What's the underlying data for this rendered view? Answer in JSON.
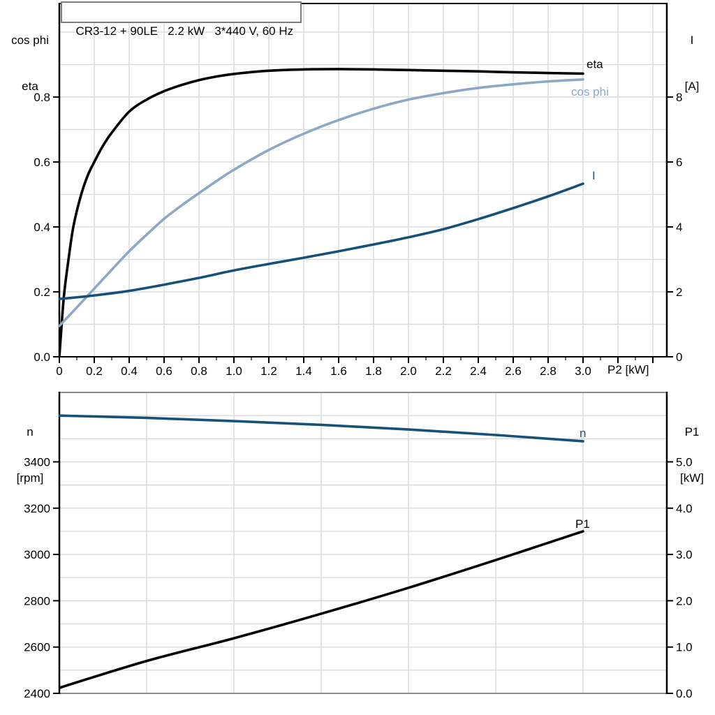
{
  "title": "CR3-12 + 90LE   2.2 kW   3*440 V, 60 Hz",
  "colors": {
    "black_curve": "#000000",
    "light_blue_curve": "#8CA8C6",
    "dark_blue_curve": "#175079",
    "grid": "#D9D9D9",
    "frame": "#000000",
    "frame_gray": "#8C8C8C",
    "title_border": "#7F7F7F"
  },
  "chart_data": [
    {
      "type": "line",
      "title": "CR3-12 + 90LE   2.2 kW   3*440 V, 60 Hz",
      "x_axis": {
        "label": "P2 [kW]",
        "range": [
          0,
          3.48
        ],
        "tick_values": [
          0,
          0.2,
          0.4,
          0.6,
          0.8,
          1.0,
          1.2,
          1.4,
          1.6,
          1.8,
          2.0,
          2.2,
          2.4,
          2.6,
          2.8,
          3.0,
          3.2,
          3.4
        ],
        "tick_labels": [
          "0",
          "0.2",
          "0.4",
          "0.6",
          "0.8",
          "1.0",
          "1.2",
          "1.4",
          "1.6",
          "1.8",
          "2.0",
          "2.2",
          "2.4",
          "2.6",
          "2.8",
          "3.0",
          "",
          ""
        ],
        "minor_ticks": [
          0.1,
          0.3,
          0.5,
          0.7,
          0.9,
          1.1,
          1.3,
          1.5,
          1.7,
          1.9,
          2.1,
          2.3,
          2.5,
          2.7,
          2.9,
          3.1,
          3.3
        ],
        "grid": [
          0.2,
          0.4,
          0.6,
          0.8,
          1.0,
          1.2,
          1.4,
          1.6,
          1.8,
          2.0,
          2.2,
          2.4,
          2.6,
          2.8,
          3.0,
          3.2,
          3.4
        ]
      },
      "y_left": {
        "title_lines": [
          "cos phi",
          "eta"
        ],
        "range": [
          0,
          1.088
        ],
        "tick_values": [
          0,
          0.2,
          0.4,
          0.6,
          0.8
        ],
        "tick_labels": [
          "0.0",
          "0.2",
          "0.4",
          "0.6",
          "0.8"
        ],
        "grid": [
          0.1,
          0.2,
          0.3,
          0.4,
          0.5,
          0.6,
          0.7,
          0.8,
          0.9,
          1.0
        ]
      },
      "y_right": {
        "title_lines": [
          "I",
          "[A]"
        ],
        "range": [
          0,
          10.88
        ],
        "tick_values": [
          0,
          2,
          4,
          6,
          8
        ],
        "tick_labels": [
          "0",
          "2",
          "4",
          "6",
          "8"
        ]
      },
      "series": [
        {
          "name": "eta",
          "label": "eta",
          "axis": "left",
          "color": "#000000",
          "label_anchor": [
            3.0,
            0.872
          ],
          "label_offset": [
            5,
            -8
          ],
          "points": [
            [
              0,
              0
            ],
            [
              0.025,
              0.18
            ],
            [
              0.05,
              0.29
            ],
            [
              0.08,
              0.4
            ],
            [
              0.12,
              0.49
            ],
            [
              0.16,
              0.555
            ],
            [
              0.2,
              0.6
            ],
            [
              0.25,
              0.65
            ],
            [
              0.3,
              0.69
            ],
            [
              0.4,
              0.755
            ],
            [
              0.5,
              0.792
            ],
            [
              0.6,
              0.818
            ],
            [
              0.7,
              0.837
            ],
            [
              0.8,
              0.852
            ],
            [
              0.9,
              0.863
            ],
            [
              1.0,
              0.871
            ],
            [
              1.2,
              0.881
            ],
            [
              1.4,
              0.885
            ],
            [
              1.6,
              0.886
            ],
            [
              1.8,
              0.885
            ],
            [
              2.0,
              0.883
            ],
            [
              2.2,
              0.881
            ],
            [
              2.4,
              0.879
            ],
            [
              2.6,
              0.876
            ],
            [
              2.8,
              0.874
            ],
            [
              3.0,
              0.872
            ]
          ]
        },
        {
          "name": "cos phi",
          "label": "cos phi",
          "axis": "left",
          "color": "#8CA8C6",
          "label_anchor": [
            3.0,
            0.854
          ],
          "label_offset": [
            -17,
            23
          ],
          "points": [
            [
              0,
              0.095
            ],
            [
              0.1,
              0.152
            ],
            [
              0.2,
              0.21
            ],
            [
              0.3,
              0.268
            ],
            [
              0.4,
              0.325
            ],
            [
              0.5,
              0.376
            ],
            [
              0.6,
              0.425
            ],
            [
              0.7,
              0.466
            ],
            [
              0.8,
              0.504
            ],
            [
              0.9,
              0.541
            ],
            [
              1.0,
              0.576
            ],
            [
              1.2,
              0.637
            ],
            [
              1.4,
              0.687
            ],
            [
              1.6,
              0.729
            ],
            [
              1.8,
              0.764
            ],
            [
              2.0,
              0.792
            ],
            [
              2.2,
              0.812
            ],
            [
              2.4,
              0.828
            ],
            [
              2.6,
              0.839
            ],
            [
              2.8,
              0.848
            ],
            [
              3.0,
              0.854
            ]
          ]
        },
        {
          "name": "I",
          "label": "I",
          "axis": "right",
          "color": "#175079",
          "label_anchor": [
            3.0,
            5.33
          ],
          "label_offset": [
            13,
            -6
          ],
          "points": [
            [
              0,
              1.78
            ],
            [
              0.2,
              1.89
            ],
            [
              0.4,
              2.03
            ],
            [
              0.6,
              2.22
            ],
            [
              0.8,
              2.43
            ],
            [
              1.0,
              2.66
            ],
            [
              1.2,
              2.86
            ],
            [
              1.4,
              3.05
            ],
            [
              1.6,
              3.25
            ],
            [
              1.8,
              3.46
            ],
            [
              2.0,
              3.68
            ],
            [
              2.2,
              3.93
            ],
            [
              2.4,
              4.24
            ],
            [
              2.6,
              4.58
            ],
            [
              2.8,
              4.94
            ],
            [
              3.0,
              5.33
            ]
          ]
        }
      ]
    },
    {
      "type": "line",
      "title": "",
      "x_axis": {
        "label": "",
        "range": [
          0,
          3.48
        ],
        "tick_values": [],
        "tick_labels": [],
        "minor_ticks": [],
        "grid": [
          0.5,
          1.0,
          1.5,
          2.0,
          2.5,
          3.0
        ]
      },
      "y_left": {
        "title_lines": [
          "n",
          "[rpm]"
        ],
        "range": [
          2400,
          3700
        ],
        "tick_values": [
          2400,
          2600,
          2800,
          3000,
          3200,
          3400
        ],
        "tick_labels": [
          "2400",
          "2600",
          "2800",
          "3000",
          "3200",
          "3400"
        ],
        "grid": [
          2500,
          2600,
          2700,
          2800,
          2900,
          3000,
          3100,
          3200,
          3300,
          3400,
          3500,
          3600,
          3700
        ]
      },
      "y_right": {
        "title_lines": [
          "P1",
          "[kW]"
        ],
        "range": [
          0,
          6.5
        ],
        "tick_values": [
          0,
          1,
          2,
          3,
          4,
          5
        ],
        "tick_labels": [
          "0.0",
          "1.0",
          "2.0",
          "3.0",
          "4.0",
          "5.0"
        ]
      },
      "series": [
        {
          "name": "n",
          "label": "n",
          "axis": "left",
          "color": "#175079",
          "label_anchor": [
            3.0,
            3489
          ],
          "label_offset": [
            -5,
            -6
          ],
          "points": [
            [
              0,
              3600
            ],
            [
              0.5,
              3590
            ],
            [
              1.0,
              3576
            ],
            [
              1.5,
              3560
            ],
            [
              2.0,
              3540
            ],
            [
              2.5,
              3516
            ],
            [
              3.0,
              3489
            ]
          ]
        },
        {
          "name": "P1",
          "label": "P1",
          "axis": "right",
          "color": "#000000",
          "label_anchor": [
            3.0,
            3.5
          ],
          "label_offset": [
            -11,
            -5
          ],
          "points": [
            [
              0,
              0.12
            ],
            [
              0.5,
              0.7
            ],
            [
              1.0,
              1.19
            ],
            [
              1.5,
              1.72
            ],
            [
              2.0,
              2.28
            ],
            [
              2.5,
              2.88
            ],
            [
              3.0,
              3.5
            ]
          ]
        }
      ]
    }
  ]
}
